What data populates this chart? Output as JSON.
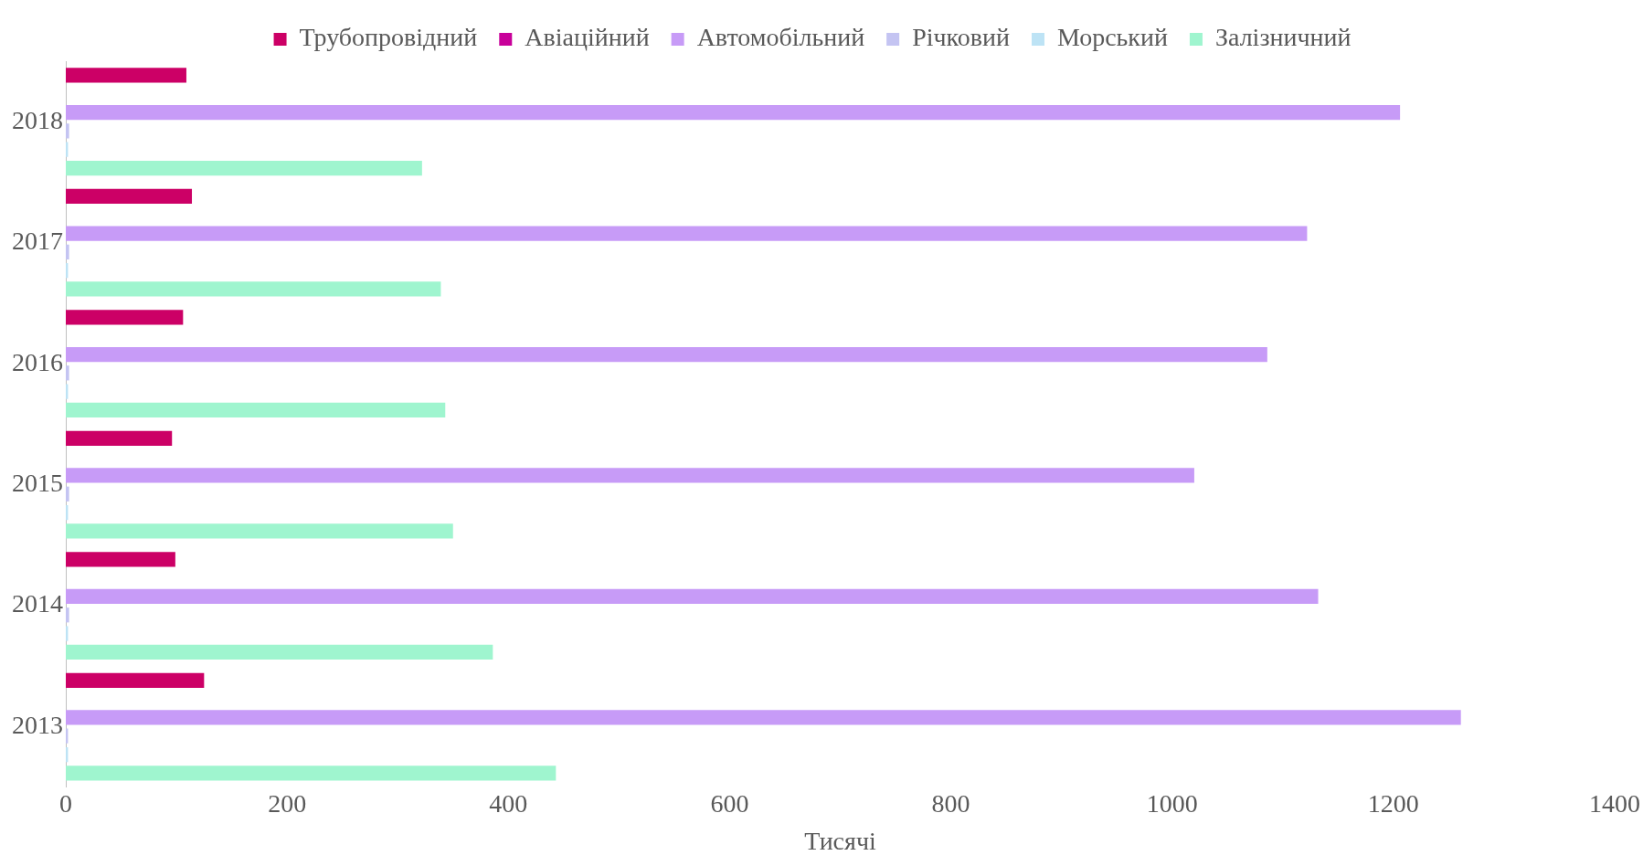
{
  "chart_data": {
    "type": "bar",
    "orientation": "horizontal",
    "xlabel": "Тисячі",
    "categories": [
      "2018",
      "2017",
      "2016",
      "2015",
      "2014",
      "2013"
    ],
    "series": [
      {
        "name": "Трубопровідний",
        "color": "#cc0066",
        "values": [
          109,
          114,
          106,
          96,
          99,
          125
        ]
      },
      {
        "name": "Авіаційний",
        "color": "#c8009a",
        "values": [
          null,
          null,
          null,
          null,
          null,
          null
        ]
      },
      {
        "name": "Автомобільний",
        "color": "#c79bf7",
        "values": [
          1206,
          1122,
          1086,
          1020,
          1132,
          1261
        ]
      },
      {
        "name": "Річковий",
        "color": "#c4c4f2",
        "values": [
          3,
          3,
          3,
          3,
          3,
          2
        ]
      },
      {
        "name": "Морський",
        "color": "#bde3f5",
        "values": [
          2,
          2,
          2,
          2,
          2,
          2
        ]
      },
      {
        "name": "Залізничний",
        "color": "#9ff5cf",
        "values": [
          322,
          339,
          343,
          350,
          386,
          443
        ]
      }
    ],
    "xlim": [
      0,
      1400
    ],
    "xticks": [
      0,
      200,
      400,
      600,
      800,
      1000,
      1200,
      1400
    ],
    "grid": false,
    "legend": "top"
  }
}
